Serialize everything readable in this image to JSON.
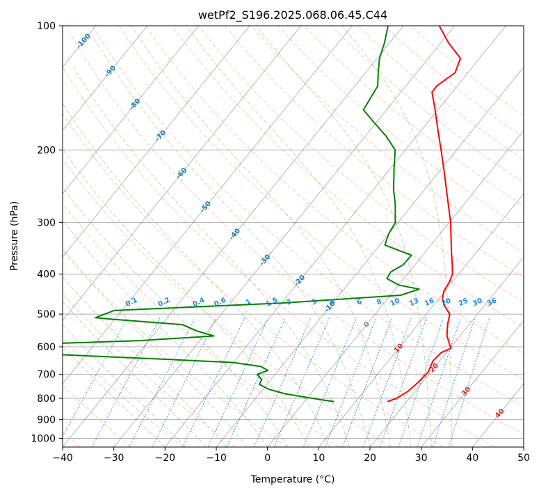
{
  "chart_data": {
    "type": "line",
    "subtype": "skew-t log-p",
    "title": "wetPf2_S196.2025.068.06.45.C44",
    "xlabel": "Temperature (°C)",
    "ylabel": "Pressure (hPa)",
    "xlim": [
      -40,
      50
    ],
    "ylim": [
      1050,
      100
    ],
    "x_ticks": [
      -40,
      -30,
      -20,
      -10,
      0,
      10,
      20,
      30,
      40,
      50
    ],
    "y_ticks": [
      100,
      200,
      300,
      400,
      500,
      600,
      700,
      800,
      900,
      1000
    ],
    "series": [
      {
        "name": "Temperature",
        "color": "#ff0000",
        "points": [
          {
            "p": 815,
            "t": 16.2
          },
          {
            "p": 800,
            "t": 17.5
          },
          {
            "p": 770,
            "t": 18.6
          },
          {
            "p": 730,
            "t": 19.2
          },
          {
            "p": 690,
            "t": 19.5
          },
          {
            "p": 650,
            "t": 18.7
          },
          {
            "p": 620,
            "t": 19.0
          },
          {
            "p": 605,
            "t": 20.2
          },
          {
            "p": 590,
            "t": 19.2
          },
          {
            "p": 565,
            "t": 17.5
          },
          {
            "p": 530,
            "t": 15.8
          },
          {
            "p": 500,
            "t": 14.6
          },
          {
            "p": 480,
            "t": 12.5
          },
          {
            "p": 460,
            "t": 10.8
          },
          {
            "p": 440,
            "t": 9.8
          },
          {
            "p": 420,
            "t": 9.5
          },
          {
            "p": 400,
            "t": 8.8
          },
          {
            "p": 380,
            "t": 7.3
          },
          {
            "p": 350,
            "t": 4.8
          },
          {
            "p": 300,
            "t": 0.3
          },
          {
            "p": 260,
            "t": -4.4
          },
          {
            "p": 230,
            "t": -8.4
          },
          {
            "p": 205,
            "t": -12.2
          },
          {
            "p": 180,
            "t": -16.6
          },
          {
            "p": 160,
            "t": -20.5
          },
          {
            "p": 145,
            "t": -23.9
          },
          {
            "p": 140,
            "t": -24.0
          },
          {
            "p": 130,
            "t": -22.5
          },
          {
            "p": 120,
            "t": -23.7
          },
          {
            "p": 110,
            "t": -28.5
          },
          {
            "p": 100,
            "t": -33.0
          }
        ]
      },
      {
        "name": "Dewpoint",
        "color": "#008000",
        "points": [
          {
            "p": 815,
            "t": 5.8
          },
          {
            "p": 800,
            "t": 1.0
          },
          {
            "p": 780,
            "t": -5.0
          },
          {
            "p": 760,
            "t": -9.0
          },
          {
            "p": 740,
            "t": -11.5
          },
          {
            "p": 720,
            "t": -11.8
          },
          {
            "p": 700,
            "t": -13.5
          },
          {
            "p": 685,
            "t": -12.0
          },
          {
            "p": 670,
            "t": -14.0
          },
          {
            "p": 655,
            "t": -20.0
          },
          {
            "p": 640,
            "t": -38.0
          },
          {
            "p": 625,
            "t": -58.0
          },
          {
            "p": 590,
            "t": -60.0
          },
          {
            "p": 580,
            "t": -42.0
          },
          {
            "p": 565,
            "t": -28.0
          },
          {
            "p": 550,
            "t": -32.0
          },
          {
            "p": 530,
            "t": -36.0
          },
          {
            "p": 515,
            "t": -50.0
          },
          {
            "p": 510,
            "t": -54.0
          },
          {
            "p": 490,
            "t": -51.5
          },
          {
            "p": 470,
            "t": -20.0
          },
          {
            "p": 450,
            "t": 2.0
          },
          {
            "p": 435,
            "t": 4.7
          },
          {
            "p": 425,
            "t": 0.0
          },
          {
            "p": 410,
            "t": -3.3
          },
          {
            "p": 395,
            "t": -3.6
          },
          {
            "p": 380,
            "t": -2.3
          },
          {
            "p": 360,
            "t": -2.2
          },
          {
            "p": 340,
            "t": -9.0
          },
          {
            "p": 320,
            "t": -10.0
          },
          {
            "p": 300,
            "t": -10.5
          },
          {
            "p": 270,
            "t": -13.5
          },
          {
            "p": 250,
            "t": -16.0
          },
          {
            "p": 220,
            "t": -19.5
          },
          {
            "p": 200,
            "t": -22.0
          },
          {
            "p": 185,
            "t": -26.0
          },
          {
            "p": 170,
            "t": -31.0
          },
          {
            "p": 160,
            "t": -34.5
          },
          {
            "p": 150,
            "t": -35.0
          },
          {
            "p": 140,
            "t": -35.5
          },
          {
            "p": 130,
            "t": -37.5
          },
          {
            "p": 120,
            "t": -39.5
          },
          {
            "p": 110,
            "t": -41.0
          },
          {
            "p": 100,
            "t": -43.0
          }
        ]
      }
    ],
    "reference_lines": {
      "isotherms_color": "#808080",
      "dry_adiabats_color": "#ff8c69",
      "moist_adiabats_color": "#6ab04c",
      "mixing_ratio_color": "#1e88e5",
      "isotherm_labels": [
        "-100",
        "-90",
        "-80",
        "-70",
        "-60",
        "-50",
        "-40",
        "-30",
        "-20",
        "-10"
      ],
      "isotherm_label_zero": "0",
      "mixing_ratio_labels": [
        "0.1",
        "0.2",
        "0.4",
        "0.6",
        "1",
        "1.5",
        "2",
        "3",
        "4",
        "6",
        "8",
        "10",
        "13",
        "16",
        "20",
        "25",
        "30",
        "36"
      ],
      "mixing_ratio_values": [
        0.1,
        0.2,
        0.4,
        0.6,
        1,
        1.5,
        2,
        3,
        4,
        6,
        8,
        10,
        13,
        16,
        20,
        25,
        30,
        36
      ],
      "warm_isotherm_labels": [
        "10",
        "20",
        "30",
        "40"
      ],
      "warm_label_color": "#d62728",
      "isotherm_label_color": "#1f77b4",
      "zero_label_color": "#808080"
    }
  }
}
